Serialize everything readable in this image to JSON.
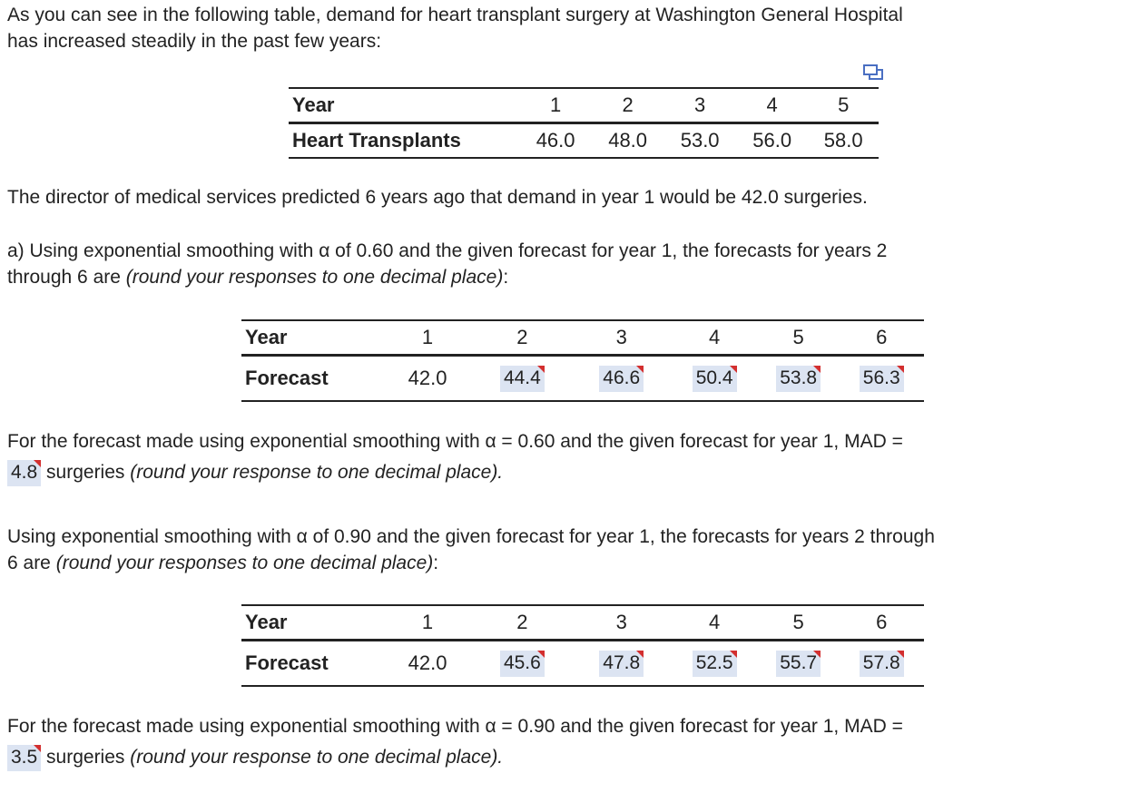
{
  "intro": {
    "line1": "As you can see in the following table, demand for heart transplant surgery at Washington General Hospital",
    "line2": "has increased steadily in the past few years:"
  },
  "table1": {
    "row1_label": "Year",
    "years": [
      "1",
      "2",
      "3",
      "4",
      "5"
    ],
    "row2_label": "Heart Transplants",
    "values": [
      "46.0",
      "48.0",
      "53.0",
      "56.0",
      "58.0"
    ]
  },
  "director_text": "The director of medical services predicted 6 years ago that demand in year 1 would be 42.0 surgeries.",
  "part_a": {
    "line1": "a) Using exponential smoothing with α of 0.60 and the given forecast for year 1, the forecasts for years 2",
    "line2_prefix": "through 6 are ",
    "line2_italic": "(round your responses to one decimal place)",
    "line2_suffix": ":"
  },
  "table2": {
    "row1_label": "Year",
    "years": [
      "1",
      "2",
      "3",
      "4",
      "5",
      "6"
    ],
    "row2_label": "Forecast",
    "year1_forecast": "42.0",
    "answers": [
      "44.4",
      "46.6",
      "50.4",
      "53.8",
      "56.3"
    ]
  },
  "mad1": {
    "line1": "For the forecast made using exponential smoothing with α = 0.60 and the given forecast for year 1, MAD =",
    "answer": "4.8",
    "suffix": " surgeries ",
    "italic": "(round your response to one decimal place)."
  },
  "part_b": {
    "line1": "Using exponential smoothing with α of 0.90 and the given forecast for year 1, the forecasts for years 2 through",
    "line2_prefix": "6 are ",
    "line2_italic": "(round your responses to one decimal place)",
    "line2_suffix": ":"
  },
  "table3": {
    "row1_label": "Year",
    "years": [
      "1",
      "2",
      "3",
      "4",
      "5",
      "6"
    ],
    "row2_label": "Forecast",
    "year1_forecast": "42.0",
    "answers": [
      "45.6",
      "47.8",
      "52.5",
      "55.7",
      "57.8"
    ]
  },
  "mad2": {
    "line1": "For the forecast made using exponential smoothing with α = 0.90 and the given forecast for year 1, MAD =",
    "answer": "3.5",
    "suffix": " surgeries ",
    "italic": "(round your response to one decimal place)."
  }
}
